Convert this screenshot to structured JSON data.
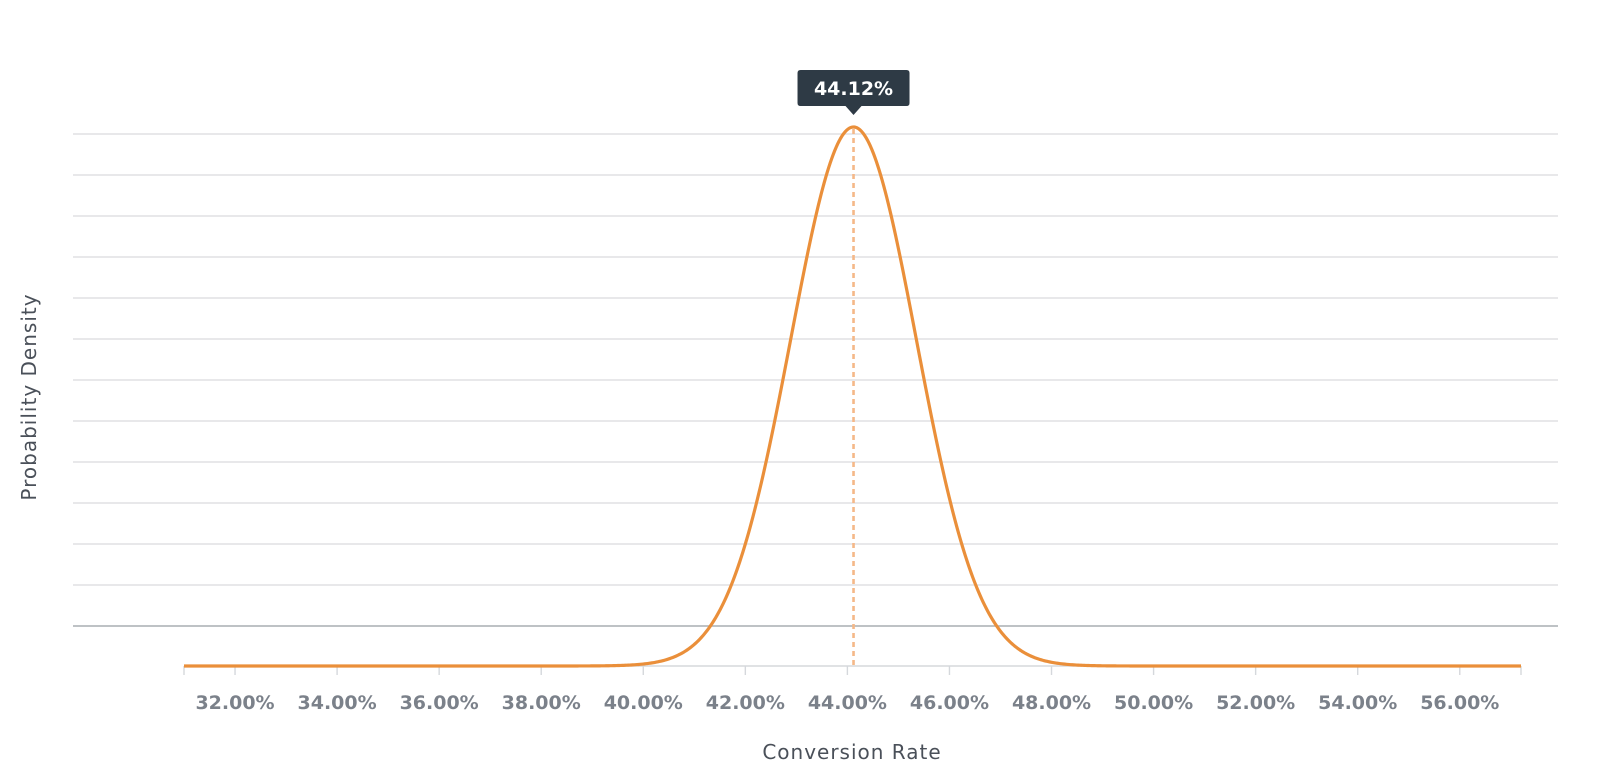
{
  "chart_data": {
    "type": "line",
    "xlabel": "Conversion Rate",
    "ylabel": "Probability Density",
    "x_ticks": [
      "32.00%",
      "34.00%",
      "36.00%",
      "38.00%",
      "40.00%",
      "42.00%",
      "44.00%",
      "46.00%",
      "48.00%",
      "50.00%",
      "52.00%",
      "54.00%",
      "56.00%"
    ],
    "xlim": [
      31.0,
      57.2
    ],
    "distribution": {
      "shape": "normal",
      "mean": 44.12,
      "std_dev": 1.23,
      "support": [
        31.0,
        57.2
      ]
    },
    "tooltip": {
      "label": "44.12%",
      "x": 44.12
    },
    "grid": true,
    "colors": {
      "curve": "#ea8f3a",
      "peak_marker": "#f5b888",
      "tooltip_bg": "#2e3a45",
      "grid": "#d9dbde"
    }
  }
}
